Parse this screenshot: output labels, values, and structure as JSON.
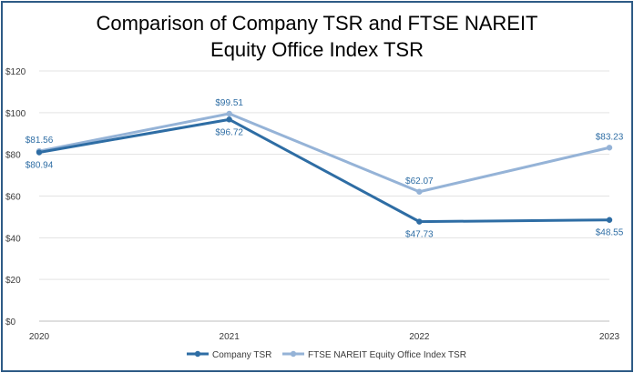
{
  "chart_data": {
    "type": "line",
    "title": [
      "Comparison of Company TSR and FTSE NAREIT",
      "Equity Office Index TSR"
    ],
    "categories": [
      "2020",
      "2021",
      "2022",
      "2023"
    ],
    "ylim": [
      0,
      120
    ],
    "yticks": [
      0,
      20,
      40,
      60,
      80,
      100,
      120
    ],
    "ytick_labels": [
      "$0",
      "$20",
      "$40",
      "$60",
      "$80",
      "$100",
      "$120"
    ],
    "grid": true,
    "legend_position": "bottom",
    "series": [
      {
        "key": "company",
        "name": "Company TSR",
        "color": "#2e6da4",
        "values": [
          80.94,
          96.72,
          47.73,
          48.55
        ],
        "labels": [
          "$80.94",
          "$96.72",
          "$47.73",
          "$48.55"
        ],
        "label_side": [
          "below",
          "below",
          "below",
          "below"
        ]
      },
      {
        "key": "ftse",
        "name": "FTSE NAREIT Equity Office Index TSR",
        "color": "#95b3d7",
        "values": [
          81.56,
          99.51,
          62.07,
          83.23
        ],
        "labels": [
          "$81.56",
          "$99.51",
          "$62.07",
          "$83.23"
        ],
        "label_side": [
          "above",
          "above",
          "above",
          "above"
        ]
      }
    ]
  }
}
